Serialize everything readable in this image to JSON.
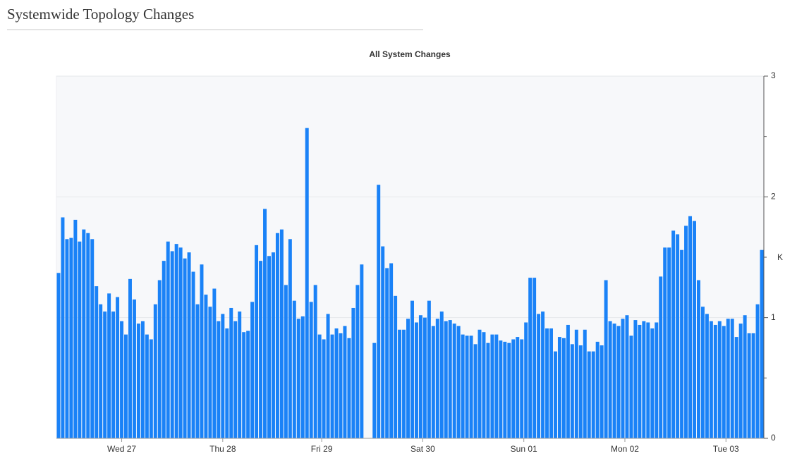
{
  "page_title": "Systemwide Topology Changes",
  "chart_data": {
    "type": "bar",
    "title": "All System Changes",
    "y_label": "K",
    "color": "#1a82f7",
    "categories": [
      null,
      null,
      null,
      null,
      null,
      null,
      null,
      null,
      null,
      null,
      null,
      null,
      null,
      null,
      null,
      null,
      null,
      null,
      null,
      null,
      null,
      null,
      null,
      null,
      null,
      null,
      null,
      null,
      null,
      null,
      null,
      null,
      null,
      null,
      null,
      null,
      null,
      null,
      null,
      null,
      null,
      null,
      null,
      null,
      null,
      null,
      null,
      null,
      null,
      null,
      null,
      null,
      null,
      null,
      null,
      null,
      null,
      null,
      null,
      null,
      null,
      null,
      null,
      null,
      null,
      null,
      null,
      null,
      null,
      null,
      null,
      null,
      null,
      null,
      null,
      null,
      null,
      null,
      null,
      null,
      null,
      null,
      null,
      null,
      null,
      null,
      null,
      null,
      null,
      null,
      null,
      null,
      null,
      null,
      null,
      null,
      null,
      null,
      null,
      null,
      null,
      null,
      null,
      null,
      null,
      null,
      null,
      null,
      null,
      null,
      null,
      null,
      null,
      null,
      null,
      null,
      null,
      null,
      null,
      null,
      null,
      null,
      null,
      null,
      null,
      null,
      null,
      null,
      null,
      null,
      null,
      null,
      null,
      null,
      null,
      null,
      null,
      null,
      null,
      null,
      null,
      null,
      null,
      null,
      null,
      null,
      null,
      null,
      null,
      null,
      null,
      null,
      null,
      null,
      null,
      null,
      null,
      null,
      null,
      null,
      null,
      null,
      null,
      null,
      null,
      null,
      null,
      null
    ],
    "values": [
      1.37,
      1.83,
      1.65,
      1.66,
      1.81,
      1.63,
      1.73,
      1.7,
      1.65,
      1.26,
      1.11,
      1.05,
      1.2,
      1.05,
      1.17,
      0.97,
      0.86,
      1.32,
      1.15,
      0.95,
      0.97,
      0.86,
      0.82,
      1.11,
      1.31,
      1.47,
      1.63,
      1.55,
      1.61,
      1.58,
      1.49,
      1.54,
      1.38,
      1.11,
      1.44,
      1.19,
      1.09,
      1.24,
      0.97,
      1.03,
      0.91,
      1.08,
      0.97,
      1.05,
      0.88,
      0.89,
      1.13,
      1.6,
      1.47,
      1.9,
      1.51,
      1.54,
      1.7,
      1.73,
      1.27,
      1.65,
      1.14,
      0.99,
      1.01,
      2.57,
      1.13,
      1.27,
      0.86,
      0.82,
      1.03,
      0.86,
      0.91,
      0.87,
      0.93,
      0.83,
      1.08,
      1.27,
      1.44,
      null,
      null,
      0.79,
      2.1,
      1.59,
      1.41,
      1.45,
      1.18,
      0.9,
      0.9,
      0.99,
      1.14,
      0.96,
      1.02,
      1.0,
      1.14,
      0.93,
      0.99,
      1.05,
      0.97,
      0.98,
      0.95,
      0.93,
      0.86,
      0.85,
      0.85,
      0.78,
      0.9,
      0.88,
      0.79,
      0.86,
      0.86,
      0.81,
      0.8,
      0.79,
      0.82,
      0.84,
      0.82,
      0.96,
      1.33,
      1.33,
      1.03,
      1.05,
      0.91,
      0.91,
      0.72,
      0.84,
      0.83,
      0.94,
      0.78,
      0.9,
      0.77,
      0.9,
      0.72,
      0.72,
      0.8,
      0.77,
      1.31,
      0.97,
      0.95,
      0.93,
      0.99,
      1.02,
      0.85,
      0.98,
      0.94,
      0.97,
      0.96,
      0.91,
      0.96,
      1.34,
      1.58,
      1.58,
      1.72,
      1.69,
      1.56,
      1.76,
      1.84,
      1.8,
      1.31,
      1.09,
      1.03,
      0.97,
      0.94,
      0.97,
      0.93,
      0.99,
      0.99,
      0.84,
      0.95,
      1.02,
      0.87,
      0.87,
      1.11,
      1.56
    ],
    "xlim": [
      0,
      168
    ],
    "xticks": [
      {
        "value": 15.5,
        "label": "Wed 27"
      },
      {
        "value": 39.5,
        "label": "Thu 28"
      },
      {
        "value": 63,
        "label": "Fri 29"
      },
      {
        "value": 87,
        "label": "Sat 30"
      },
      {
        "value": 111,
        "label": "Sun 01"
      },
      {
        "value": 135,
        "label": "Mon 02"
      },
      {
        "value": 159,
        "label": "Tue 03"
      }
    ],
    "ylim": [
      0,
      3
    ],
    "yticks": [
      0,
      1,
      2,
      3
    ],
    "yminor_ticks": [
      0.5,
      1.5,
      2.5
    ],
    "grid": true
  }
}
